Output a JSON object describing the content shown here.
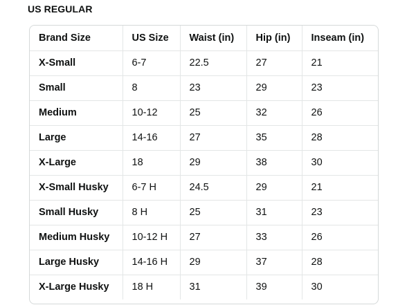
{
  "section_title": "US REGULAR",
  "table": {
    "headers": [
      "Brand Size",
      "US Size",
      "Waist (in)",
      "Hip (in)",
      "Inseam (in)"
    ],
    "rows": [
      [
        "X-Small",
        "6-7",
        "22.5",
        "27",
        "21"
      ],
      [
        "Small",
        "8",
        "23",
        "29",
        "23"
      ],
      [
        "Medium",
        "10-12",
        "25",
        "32",
        "26"
      ],
      [
        "Large",
        "14-16",
        "27",
        "35",
        "28"
      ],
      [
        "X-Large",
        "18",
        "29",
        "38",
        "30"
      ],
      [
        "X-Small Husky",
        "6-7 H",
        "24.5",
        "29",
        "21"
      ],
      [
        "Small Husky",
        "8 H",
        "25",
        "31",
        "23"
      ],
      [
        "Medium Husky",
        "10-12 H",
        "27",
        "33",
        "26"
      ],
      [
        "Large Husky",
        "14-16 H",
        "29",
        "37",
        "28"
      ],
      [
        "X-Large Husky",
        "18 H",
        "31",
        "39",
        "30"
      ]
    ]
  }
}
